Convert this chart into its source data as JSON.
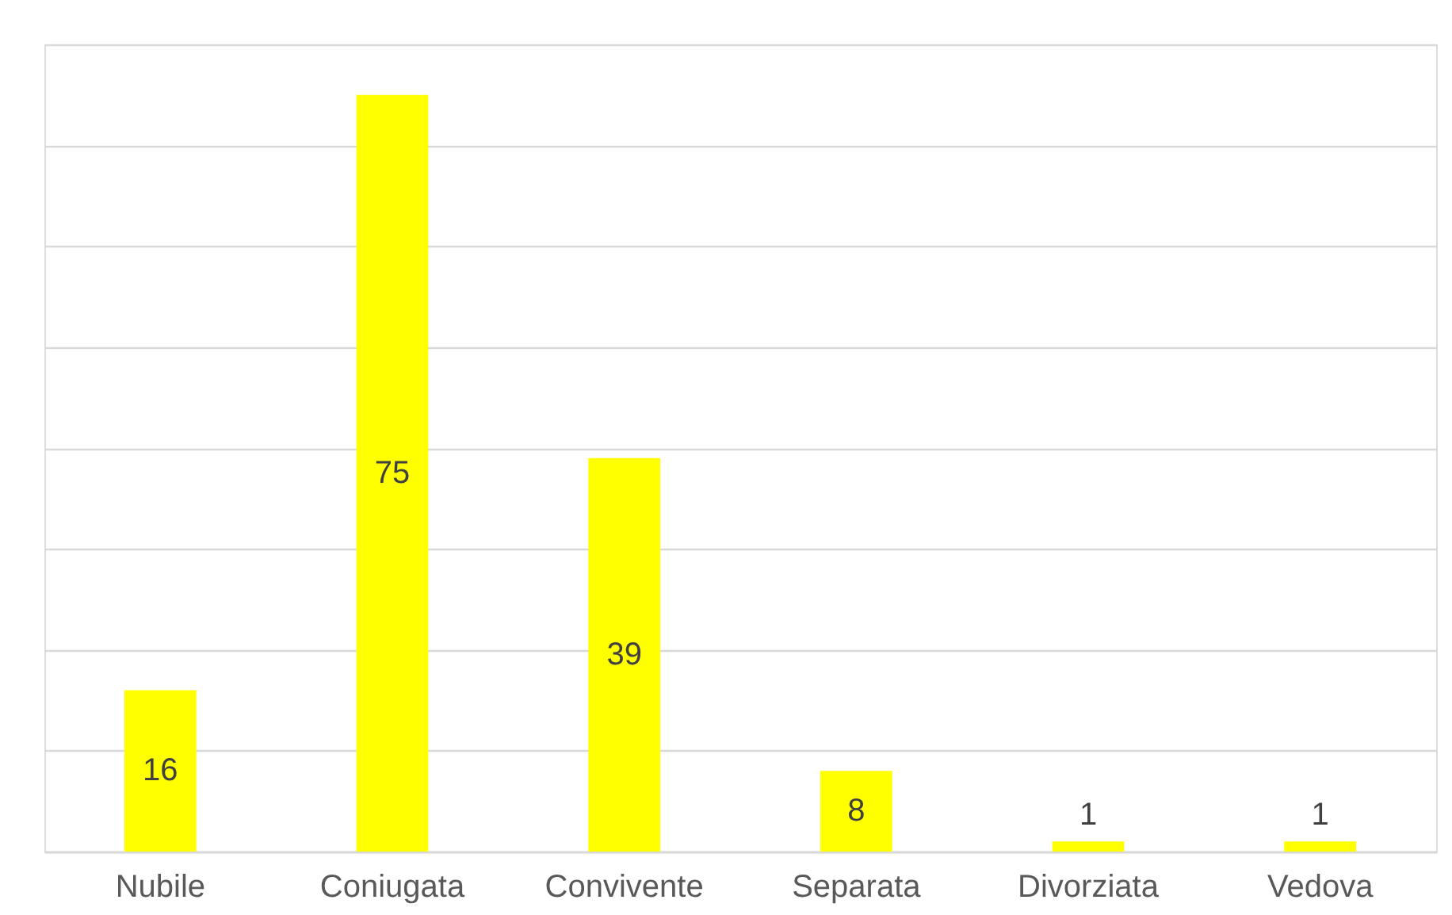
{
  "chart_data": {
    "type": "bar",
    "categories": [
      "Nubile",
      "Coniugata",
      "Convivente",
      "Separata",
      "Divorziata",
      "Vedova"
    ],
    "values": [
      16,
      75,
      39,
      8,
      1,
      1
    ],
    "color": "#ffff00",
    "ylim": [
      0,
      80
    ],
    "yticks": [
      {
        "value": 0,
        "label": null
      },
      {
        "value": 10,
        "label": null
      },
      {
        "value": 20,
        "label": null
      },
      {
        "value": 30,
        "label": null
      },
      {
        "value": 40,
        "label": null
      },
      {
        "value": 50,
        "label": null
      },
      {
        "value": 60,
        "label": null
      },
      {
        "value": 70,
        "label": null
      },
      {
        "value": 80,
        "label": null
      }
    ],
    "tick_labels": "x",
    "grid": "y",
    "data_labels": true
  }
}
